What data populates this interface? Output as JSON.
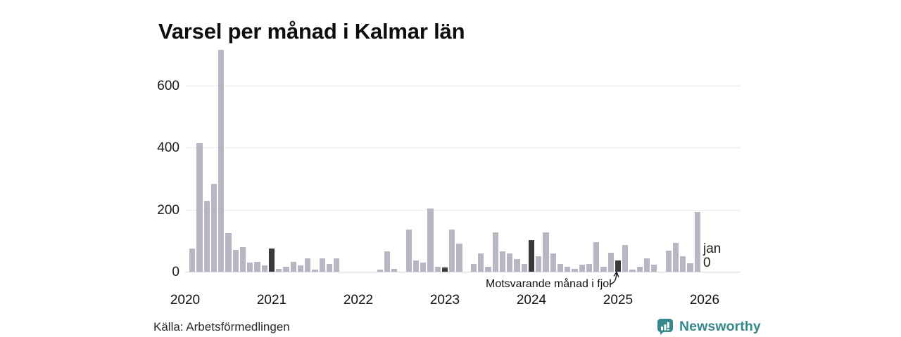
{
  "title": "Varsel per månad i Kalmar län",
  "chart_data": {
    "type": "bar",
    "title": "Varsel per månad i Kalmar län",
    "x_unit": "month",
    "years": [
      "2020",
      "2021",
      "2022",
      "2023",
      "2024",
      "2025",
      "2026"
    ],
    "series_monthly": [
      {
        "year": "2020",
        "values": [
          0,
          75,
          415,
          228,
          283,
          715,
          125,
          71,
          80,
          30,
          32,
          21
        ]
      },
      {
        "year": "2021",
        "values": [
          75,
          9,
          15,
          31,
          20,
          43,
          8,
          43,
          25,
          43,
          0,
          0
        ]
      },
      {
        "year": "2022",
        "values": [
          0,
          0,
          0,
          7,
          65,
          9,
          0,
          137,
          36,
          29,
          203,
          15
        ]
      },
      {
        "year": "2023",
        "values": [
          13,
          137,
          90,
          0,
          25,
          58,
          16,
          126,
          65,
          58,
          41,
          25
        ]
      },
      {
        "year": "2024",
        "values": [
          102,
          50,
          127,
          59,
          26,
          16,
          9,
          22,
          25,
          95,
          16,
          61
        ]
      },
      {
        "year": "2025",
        "values": [
          36,
          87,
          8,
          17,
          44,
          23,
          0,
          68,
          92,
          50,
          27,
          193
        ]
      },
      {
        "year": "2026",
        "values": [
          0
        ]
      }
    ],
    "yticks": [
      0,
      200,
      400,
      600
    ],
    "ylim": [
      0,
      740
    ],
    "grid": "horizontal",
    "legend": "none",
    "dark_month_index": 0,
    "annotation": "Motsvarande månad i fjol",
    "annotation_points_to": "jan 2025",
    "last_point_label": {
      "month": "jan",
      "value": "0"
    },
    "colors": {
      "bar": "#b9b5c3",
      "dark_bar": "#3a3a3a",
      "grid": "#eae9ee",
      "axis": "#d6d5db"
    }
  },
  "footer": {
    "source": "Källa: Arbetsförmedlingen",
    "brand": "Newsworthy",
    "brand_color": "#35898b"
  }
}
